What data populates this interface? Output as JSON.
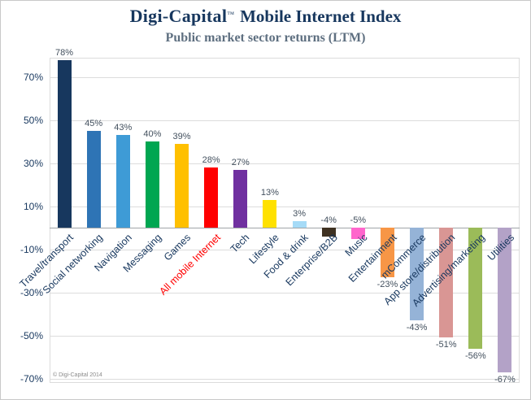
{
  "header": {
    "brand": "Digi-Capital",
    "trademark": "™",
    "title": "Mobile Internet Index",
    "subtitle": "Public market sector returns (LTM)"
  },
  "footer": {
    "copyright": "© Digi-Capital 2014"
  },
  "chart_data": {
    "type": "bar",
    "title": "Digi-Capital Mobile Internet Index",
    "subtitle": "Public market sector returns (LTM)",
    "categories": [
      "Travel/transport",
      "Social networking",
      "Navigation",
      "Messaging",
      "Games",
      "All mobile Internet",
      "Tech",
      "Lifestyle",
      "Food & drink",
      "Enterprise/B2B",
      "Music",
      "Entertainment",
      "mCommerce",
      "App store/distribution",
      "Advertising/marketing",
      "Utilities"
    ],
    "values": [
      78,
      45,
      43,
      40,
      39,
      28,
      27,
      13,
      3,
      -4,
      -5,
      -23,
      -43,
      -51,
      -56,
      -67
    ],
    "value_labels": [
      "78%",
      "45%",
      "43%",
      "40%",
      "39%",
      "28%",
      "27%",
      "13%",
      "3%",
      "-4%",
      "-5%",
      "-23%",
      "-43%",
      "-51%",
      "-56%",
      "-67%"
    ],
    "bar_colors": [
      "#17375E",
      "#2E74B5",
      "#3E9BD6",
      "#00A651",
      "#FFC000",
      "#FF0000",
      "#7030A0",
      "#FFE100",
      "#A6DBF7",
      "#3F3222",
      "#FF66CC",
      "#F79646",
      "#95B3D7",
      "#D99694",
      "#9BBB59",
      "#B3A2C7"
    ],
    "highlight_category": "All mobile Internet",
    "highlight_color": "#FF0000",
    "category_label_color": "#17375E",
    "axis_label_color": "#17375E",
    "yticks": [
      70,
      50,
      30,
      10,
      -10,
      -30,
      -50,
      -70
    ],
    "ytick_labels": [
      "70%",
      "50%",
      "30%",
      "10%",
      "-10%",
      "-30%",
      "-50%",
      "-70%"
    ],
    "ylim": [
      -72,
      79
    ],
    "grid": true,
    "legend": false,
    "value_suffix": "%"
  }
}
